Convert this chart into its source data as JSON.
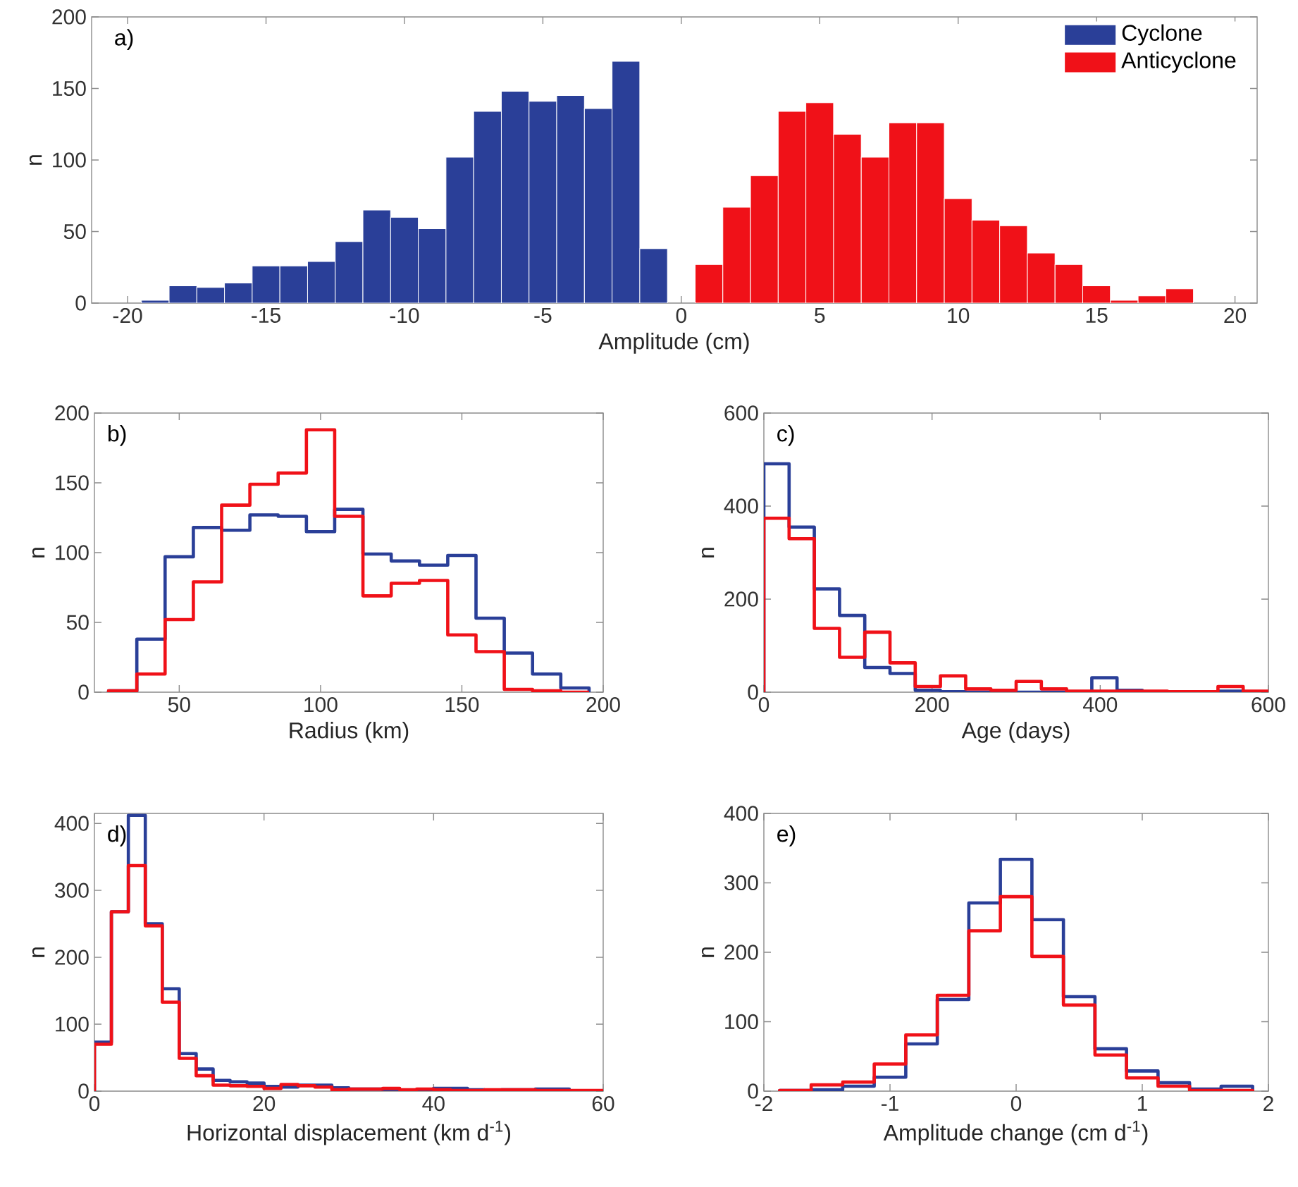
{
  "chart_data": [
    {
      "type": "histogram",
      "xlabel": "Amplitude (cm)",
      "ylabel": "n",
      "annotations": [
        "a)"
      ],
      "legend": "top right",
      "xlim": [
        -21.3,
        20.8
      ],
      "xticks": [
        -20,
        -15,
        -10,
        -5,
        0,
        5,
        10,
        15,
        20
      ],
      "ylim": [
        0,
        200
      ],
      "yticks": [
        0,
        50,
        100,
        150,
        200
      ],
      "bins": [
        -19.5,
        -18.5,
        -17.5,
        -16.5,
        -15.5,
        -14.5,
        -13.5,
        -12.5,
        -11.5,
        -10.5,
        -9.5,
        -8.5,
        -7.5,
        -6.5,
        -5.5,
        -4.5,
        -3.5,
        -2.5,
        -1.5,
        -0.5,
        0.5,
        1.5,
        2.5,
        3.5,
        4.5,
        5.5,
        6.5,
        7.5,
        8.5,
        9.5,
        10.5,
        11.5,
        12.5,
        13.5,
        14.5,
        15.5,
        16.5,
        17.5,
        18.5
      ],
      "series": [
        {
          "name": "Cyclone",
          "color": "#2a3f98",
          "values": [
            2,
            12,
            11,
            14,
            26,
            26,
            29,
            43,
            65,
            60,
            52,
            102,
            134,
            148,
            141,
            145,
            136,
            169,
            38,
            null,
            null,
            null,
            null,
            null,
            null,
            null,
            null,
            null,
            null,
            null,
            null,
            null,
            null,
            null,
            null,
            null,
            null,
            null
          ]
        },
        {
          "name": "Anticyclone",
          "color": "#f01118",
          "values": [
            null,
            null,
            null,
            null,
            null,
            null,
            null,
            null,
            null,
            null,
            null,
            null,
            null,
            null,
            null,
            null,
            null,
            null,
            null,
            null,
            27,
            67,
            89,
            134,
            140,
            118,
            102,
            126,
            126,
            73,
            58,
            54,
            35,
            27,
            12,
            2,
            5,
            10
          ]
        }
      ]
    },
    {
      "type": "histogram",
      "xlabel": "Radius (km)",
      "ylabel": "n",
      "annotations": [
        "b)"
      ],
      "xlim": [
        20,
        200
      ],
      "xticks": [
        50,
        100,
        150,
        200
      ],
      "ylim": [
        0,
        200
      ],
      "yticks": [
        0,
        50,
        100,
        150,
        200
      ],
      "bins": [
        25,
        35,
        45,
        55,
        65,
        75,
        85,
        95,
        105,
        115,
        125,
        135,
        145,
        155,
        165,
        175,
        185,
        195
      ],
      "series": [
        {
          "color": "#2a3f98",
          "values": [
            1,
            38,
            97,
            118,
            116,
            127,
            126,
            115,
            131,
            99,
            94,
            91,
            98,
            53,
            28,
            13,
            3
          ]
        },
        {
          "color": "#f01118",
          "values": [
            1,
            13,
            52,
            79,
            134,
            149,
            157,
            188,
            126,
            69,
            78,
            80,
            41,
            29,
            2,
            1,
            0
          ]
        }
      ]
    },
    {
      "type": "histogram",
      "xlabel": "Age (days)",
      "ylabel": "n",
      "annotations": [
        "c)"
      ],
      "xlim": [
        0,
        600
      ],
      "xticks": [
        0,
        200,
        400,
        600
      ],
      "ylim": [
        0,
        600
      ],
      "yticks": [
        0,
        200,
        400,
        600
      ],
      "bins": [
        0,
        30,
        60,
        90,
        120,
        150,
        180,
        210,
        240,
        270,
        300,
        330,
        360,
        390,
        420,
        450,
        480,
        510,
        540,
        570,
        600
      ],
      "series": [
        {
          "color": "#2a3f98",
          "values": [
            491,
            355,
            222,
            165,
            53,
            40,
            4,
            1,
            0,
            0,
            0,
            0,
            0,
            31,
            4,
            0,
            0,
            0,
            2,
            0
          ]
        },
        {
          "color": "#f01118",
          "values": [
            374,
            330,
            137,
            75,
            129,
            63,
            12,
            35,
            7,
            4,
            23,
            7,
            2,
            2,
            2,
            2,
            1,
            1,
            12,
            2
          ]
        }
      ]
    },
    {
      "type": "histogram",
      "xlabel": "Horizontal displacement (km d$^{-1}$)",
      "ylabel": "n",
      "annotations": [
        "d)"
      ],
      "xlim": [
        0,
        60
      ],
      "xticks": [
        0,
        20,
        40,
        60
      ],
      "ylim": [
        0,
        415
      ],
      "yticks": [
        0,
        100,
        200,
        300,
        400
      ],
      "bins": [
        0,
        2,
        4,
        6,
        8,
        10,
        12,
        14,
        16,
        18,
        20,
        22,
        24,
        26,
        28,
        30,
        32,
        34,
        36,
        38,
        40,
        42,
        44,
        46,
        48,
        50,
        52,
        54,
        56,
        58,
        60
      ],
      "series": [
        {
          "color": "#2a3f98",
          "values": [
            73,
            268,
            412,
            250,
            153,
            56,
            33,
            16,
            14,
            12,
            7,
            6,
            9,
            9,
            5,
            3,
            3,
            2,
            1,
            1,
            4,
            4,
            2,
            1,
            2,
            2,
            3,
            3,
            0,
            0
          ]
        },
        {
          "color": "#f01118",
          "values": [
            70,
            268,
            337,
            247,
            133,
            49,
            23,
            9,
            8,
            7,
            4,
            10,
            8,
            6,
            2,
            3,
            3,
            4,
            2,
            3,
            2,
            1,
            1,
            2,
            2,
            2,
            1,
            1,
            1,
            1
          ]
        }
      ]
    },
    {
      "type": "histogram",
      "xlabel": "Amplitude change (cm d$^{-1}$)",
      "ylabel": "n",
      "annotations": [
        "e)"
      ],
      "xlim": [
        -2,
        2
      ],
      "xticks": [
        -2,
        -1,
        0,
        1,
        2
      ],
      "ylim": [
        0,
        400
      ],
      "yticks": [
        0,
        100,
        200,
        300,
        400
      ],
      "bins": [
        -1.875,
        -1.625,
        -1.375,
        -1.125,
        -0.875,
        -0.625,
        -0.375,
        -0.125,
        0.125,
        0.375,
        0.625,
        0.875,
        1.125,
        1.375,
        1.625,
        1.875
      ],
      "series": [
        {
          "color": "#2a3f98",
          "values": [
            1,
            2,
            7,
            20,
            68,
            132,
            271,
            334,
            247,
            136,
            61,
            29,
            12,
            3,
            7
          ]
        },
        {
          "color": "#f01118",
          "values": [
            1,
            9,
            13,
            39,
            81,
            138,
            231,
            280,
            194,
            124,
            52,
            19,
            7,
            1,
            1
          ]
        }
      ]
    }
  ]
}
